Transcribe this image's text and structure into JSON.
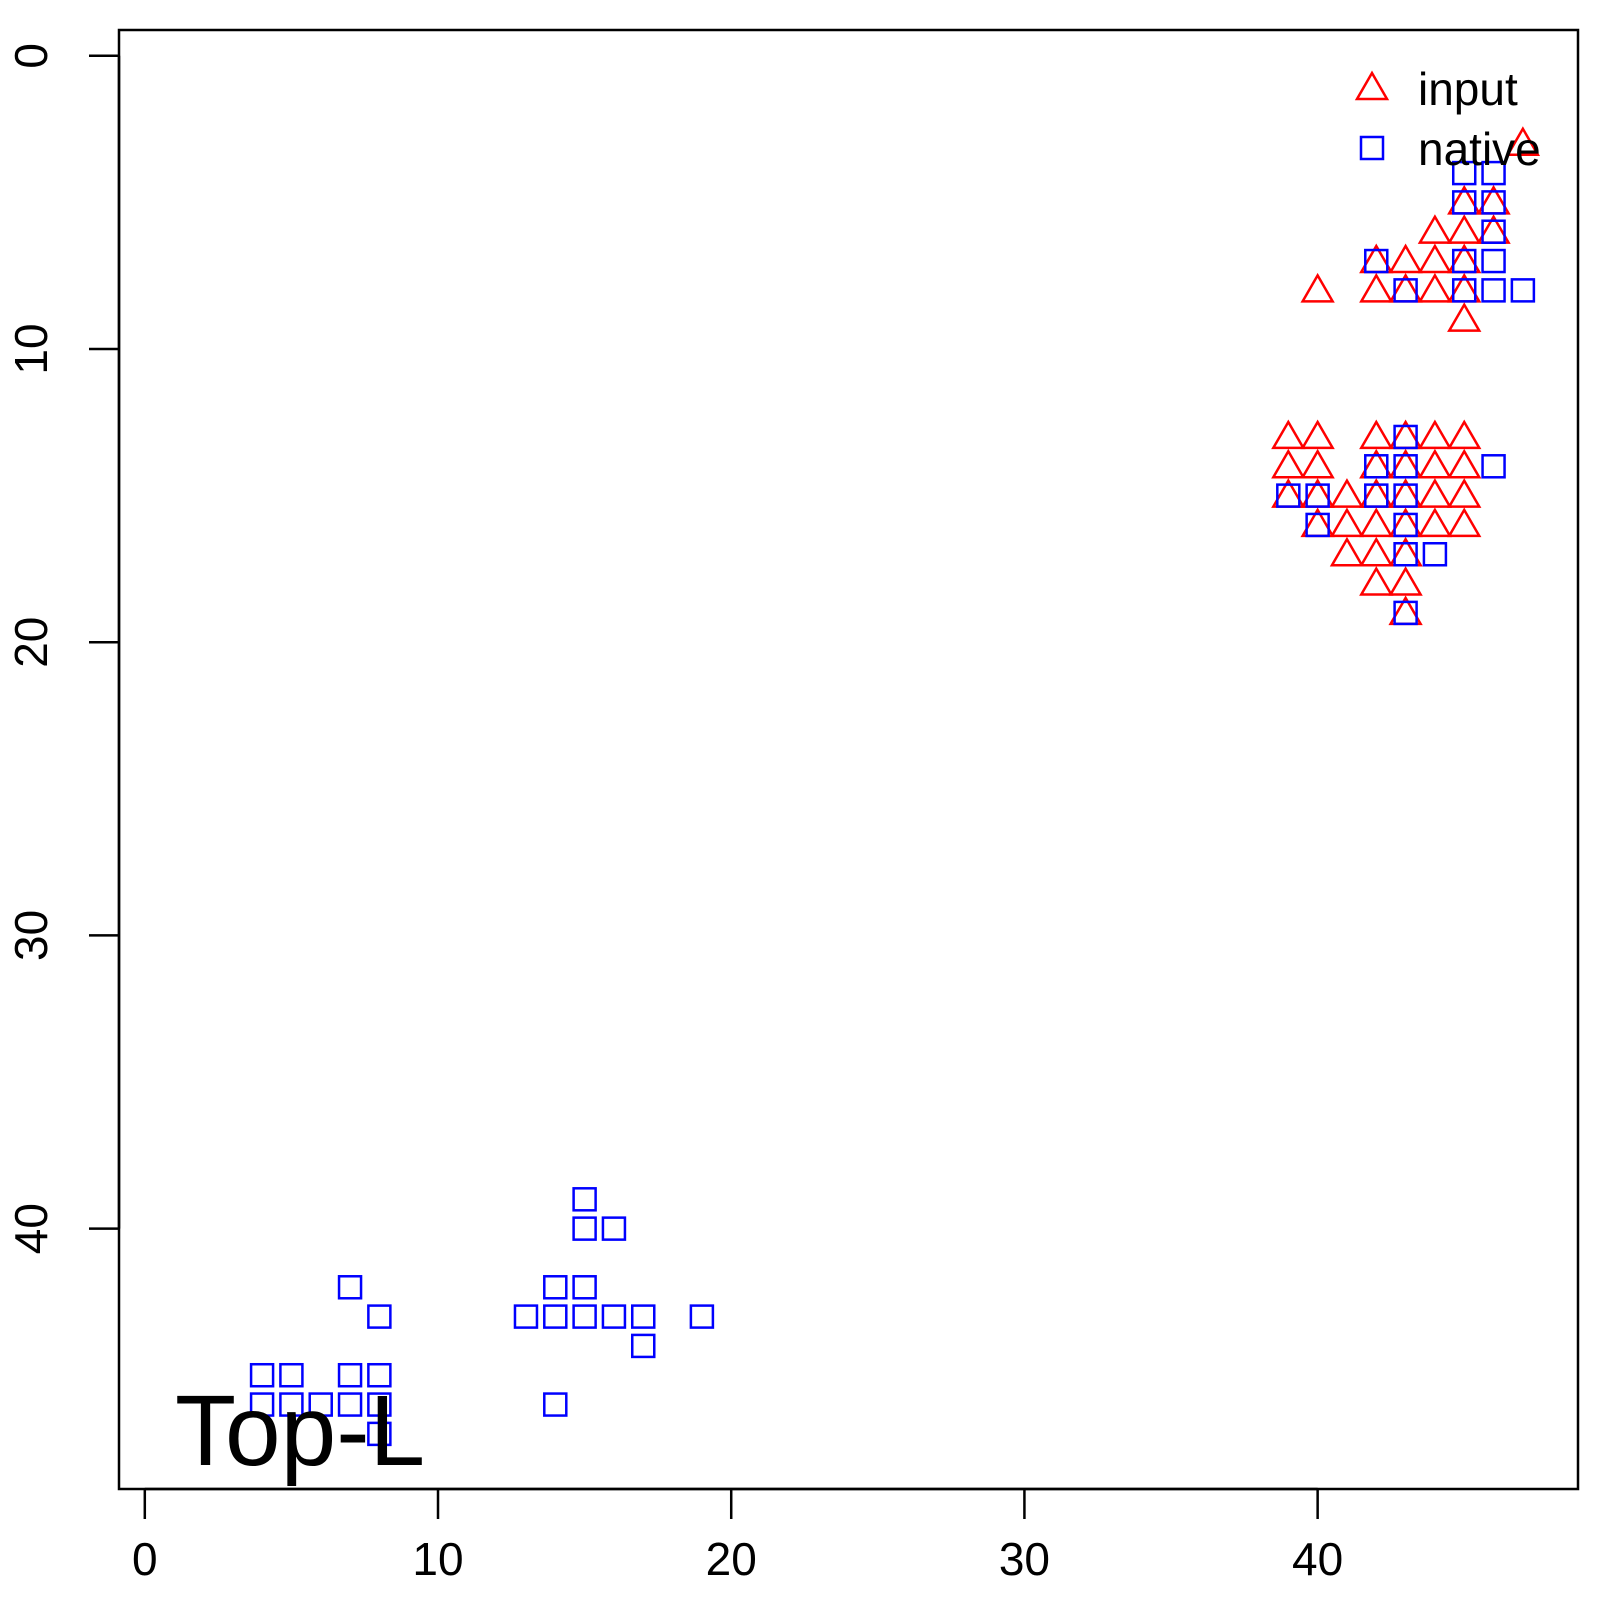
{
  "chart_data": {
    "type": "scatter",
    "title": "",
    "xlabel": "",
    "ylabel": "",
    "xlim": [
      -0.88,
      48.88
    ],
    "ylim": [
      -0.88,
      48.88
    ],
    "y_reversed": true,
    "x_ticks": [
      0,
      10,
      20,
      30,
      40
    ],
    "y_ticks": [
      0,
      10,
      20,
      30,
      40
    ],
    "x_tick_labels": [
      "0",
      "10",
      "20",
      "30",
      "40"
    ],
    "y_tick_labels": [
      "0",
      "10",
      "20",
      "30",
      "40"
    ],
    "grid": false,
    "legend_position": "top-right",
    "annotation": "Top-L",
    "series": [
      {
        "name": "input",
        "marker": "triangle",
        "color": "#ff0000",
        "x": [
          47,
          45,
          46,
          44,
          45,
          46,
          42,
          43,
          44,
          45,
          40,
          42,
          43,
          44,
          45,
          45,
          39,
          40,
          42,
          43,
          44,
          45,
          39,
          40,
          42,
          43,
          44,
          45,
          39,
          40,
          41,
          42,
          43,
          44,
          45,
          40,
          41,
          42,
          43,
          44,
          45,
          41,
          42,
          43,
          42,
          43,
          43
        ],
        "y": [
          3,
          5,
          5,
          6,
          6,
          6,
          7,
          7,
          7,
          7,
          8,
          8,
          8,
          8,
          8,
          9,
          13,
          13,
          13,
          13,
          13,
          13,
          14,
          14,
          14,
          14,
          14,
          14,
          15,
          15,
          15,
          15,
          15,
          15,
          15,
          16,
          16,
          16,
          16,
          16,
          16,
          17,
          17,
          17,
          18,
          18,
          19
        ]
      },
      {
        "name": "native",
        "marker": "square",
        "color": "#0000ff",
        "x": [
          45,
          46,
          45,
          46,
          46,
          42,
          45,
          46,
          43,
          45,
          46,
          47,
          43,
          42,
          43,
          46,
          39,
          40,
          42,
          43,
          40,
          43,
          43,
          44,
          43,
          15,
          15,
          16,
          7,
          14,
          15,
          8,
          13,
          14,
          15,
          16,
          17,
          19,
          17,
          4,
          5,
          7,
          8,
          4,
          5,
          6,
          7,
          8,
          14,
          8
        ],
        "y": [
          4,
          4,
          5,
          5,
          6,
          7,
          7,
          7,
          8,
          8,
          8,
          8,
          13,
          14,
          14,
          14,
          15,
          15,
          15,
          15,
          16,
          16,
          17,
          17,
          19,
          39,
          40,
          40,
          42,
          42,
          42,
          43,
          43,
          43,
          43,
          43,
          43,
          43,
          44,
          45,
          45,
          45,
          45,
          46,
          46,
          46,
          46,
          46,
          46,
          47
        ]
      }
    ]
  }
}
